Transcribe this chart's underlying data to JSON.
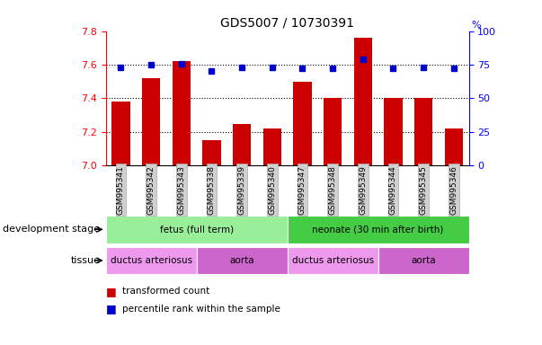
{
  "title": "GDS5007 / 10730391",
  "samples": [
    "GSM995341",
    "GSM995342",
    "GSM995343",
    "GSM995338",
    "GSM995339",
    "GSM995340",
    "GSM995347",
    "GSM995348",
    "GSM995349",
    "GSM995344",
    "GSM995345",
    "GSM995346"
  ],
  "bar_values": [
    7.38,
    7.52,
    7.62,
    7.15,
    7.25,
    7.22,
    7.5,
    7.4,
    7.76,
    7.4,
    7.4,
    7.22
  ],
  "percentile_values": [
    73,
    75,
    76,
    70,
    73,
    73,
    72,
    72,
    79,
    72,
    73,
    72
  ],
  "bar_color": "#cc0000",
  "percentile_color": "#0000cc",
  "ymin": 7.0,
  "ymax": 7.8,
  "y2min": 0,
  "y2max": 100,
  "yticks": [
    7.0,
    7.2,
    7.4,
    7.6,
    7.8
  ],
  "y2ticks": [
    0,
    25,
    50,
    75,
    100
  ],
  "grid_lines": [
    7.2,
    7.4,
    7.6
  ],
  "development_stage_groups": [
    {
      "label": "fetus (full term)",
      "start": 0,
      "end": 5,
      "color": "#99ee99"
    },
    {
      "label": "neonate (30 min after birth)",
      "start": 6,
      "end": 11,
      "color": "#44cc44"
    }
  ],
  "tissue_groups": [
    {
      "label": "ductus arteriosus",
      "start": 0,
      "end": 2,
      "color": "#ee99ee"
    },
    {
      "label": "aorta",
      "start": 3,
      "end": 5,
      "color": "#cc66cc"
    },
    {
      "label": "ductus arteriosus",
      "start": 6,
      "end": 8,
      "color": "#ee99ee"
    },
    {
      "label": "aorta",
      "start": 9,
      "end": 11,
      "color": "#cc66cc"
    }
  ],
  "legend_items": [
    {
      "label": "transformed count",
      "color": "#cc0000"
    },
    {
      "label": "percentile rank within the sample",
      "color": "#0000cc"
    }
  ],
  "left_label_dev": "development stage",
  "left_label_tissue": "tissue",
  "background_color": "#ffffff",
  "bar_width": 0.6
}
